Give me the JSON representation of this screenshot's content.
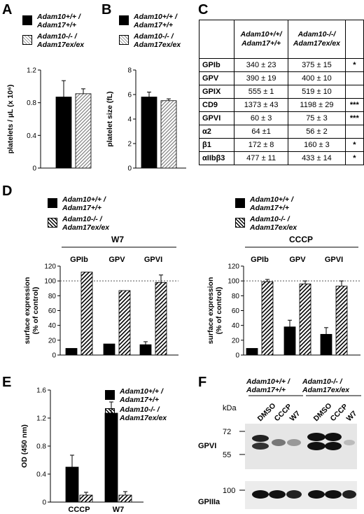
{
  "panel_labels": {
    "A": "A",
    "B": "B",
    "C": "C",
    "D": "D",
    "E": "E",
    "F": "F"
  },
  "legend": {
    "wt_line1": "Adam10+/+ /",
    "wt_line2": "Adam17+/+",
    "ko_line1": "Adam10-/- /",
    "ko_line2": "Adam17ex/ex"
  },
  "chart_data": [
    {
      "id": "A",
      "type": "bar",
      "ylabel": "platelets / µL (x 10⁶)",
      "ylim": [
        0,
        1.2
      ],
      "yticks": [
        "0",
        "0.4",
        "0.8",
        "1.2"
      ],
      "series": [
        {
          "name": "Adam10+/+ / Adam17+/+",
          "value": 0.87,
          "error": 0.2
        },
        {
          "name": "Adam10-/- / Adam17ex/ex",
          "value": 0.91,
          "error": 0.06
        }
      ]
    },
    {
      "id": "B",
      "type": "bar",
      "ylabel": "platelet size (fL)",
      "ylim": [
        0,
        8
      ],
      "yticks": [
        "0",
        "2",
        "4",
        "6",
        "8"
      ],
      "series": [
        {
          "name": "Adam10+/+ / Adam17+/+",
          "value": 5.8,
          "error": 0.4
        },
        {
          "name": "Adam10-/- / Adam17ex/ex",
          "value": 5.5,
          "error": 0.15
        }
      ]
    },
    {
      "id": "C",
      "type": "table",
      "columns": [
        "",
        "Adam10+/+/ Adam17+/+",
        "Adam10-/-/ Adam17ex/ex",
        ""
      ],
      "rows": [
        [
          "GPIb",
          "340 ± 23",
          "375 ± 15",
          "*"
        ],
        [
          "GPV",
          "390 ± 19",
          "400 ± 10",
          ""
        ],
        [
          "GPIX",
          "555 ± 1",
          "519 ± 10",
          ""
        ],
        [
          "CD9",
          "1373 ± 43",
          "1198 ± 29",
          "***"
        ],
        [
          "GPVI",
          "60 ± 3",
          "75 ± 3",
          "***"
        ],
        [
          "α2",
          "64 ±1",
          "56 ± 2",
          ""
        ],
        [
          "β1",
          "172 ± 8",
          "160 ± 3",
          "*"
        ],
        [
          "αIIbβ3",
          "477 ± 11",
          "433 ± 14",
          "*"
        ]
      ]
    },
    {
      "id": "D-W7",
      "type": "bar",
      "group_title": "W7",
      "categories": [
        "GPIb",
        "GPV",
        "GPVI"
      ],
      "ylabel": "surface expression (% of control)",
      "ylim": [
        0,
        120
      ],
      "yticks": [
        "0",
        "20",
        "40",
        "60",
        "80",
        "100",
        "120"
      ],
      "reference_line": 100,
      "series": [
        {
          "name": "Adam10+/+ / Adam17+/+",
          "values": [
            9,
            15,
            14
          ],
          "errors": [
            0,
            0,
            4
          ]
        },
        {
          "name": "Adam10-/- / Adam17ex/ex",
          "values": [
            112,
            87,
            98
          ],
          "errors": [
            0,
            0,
            10
          ]
        }
      ]
    },
    {
      "id": "D-CCCP",
      "type": "bar",
      "group_title": "CCCP",
      "categories": [
        "GPIb",
        "GPV",
        "GPVI"
      ],
      "ylabel": "surface expression (% of control)",
      "ylim": [
        0,
        120
      ],
      "yticks": [
        "0",
        "20",
        "40",
        "60",
        "80",
        "100",
        "120"
      ],
      "reference_line": 100,
      "series": [
        {
          "name": "Adam10+/+ / Adam17+/+",
          "values": [
            9,
            38,
            28
          ],
          "errors": [
            0,
            9,
            9
          ]
        },
        {
          "name": "Adam10-/- / Adam17ex/ex",
          "values": [
            99,
            96,
            93
          ],
          "errors": [
            3,
            4,
            7
          ]
        }
      ]
    },
    {
      "id": "E",
      "type": "bar",
      "categories": [
        "CCCP",
        "W7"
      ],
      "ylabel": "OD (450 nm)",
      "ylim": [
        0,
        1.6
      ],
      "yticks": [
        "0",
        "0.4",
        "0.8",
        "1.2",
        "1.6"
      ],
      "series": [
        {
          "name": "Adam10+/+ / Adam17+/+",
          "values": [
            0.5,
            1.27
          ],
          "errors": [
            0.17,
            0.16
          ]
        },
        {
          "name": "Adam10-/- / Adam17ex/ex",
          "values": [
            0.1,
            0.1
          ],
          "errors": [
            0.04,
            0.05
          ]
        }
      ]
    }
  ],
  "blot": {
    "group1_line1": "Adam10+/+ /",
    "group1_line2": "Adam17+/+",
    "group2_line1": "Adam10-/- /",
    "group2_line2": "Adam17ex/ex",
    "kda": "kDa",
    "lanes": [
      "DMSO",
      "CCCP",
      "W7",
      "DMSO",
      "CCCP",
      "W7"
    ],
    "markers": [
      "72",
      "55",
      "100"
    ],
    "band_labels": [
      "GPVI",
      "GPIIIa"
    ]
  }
}
